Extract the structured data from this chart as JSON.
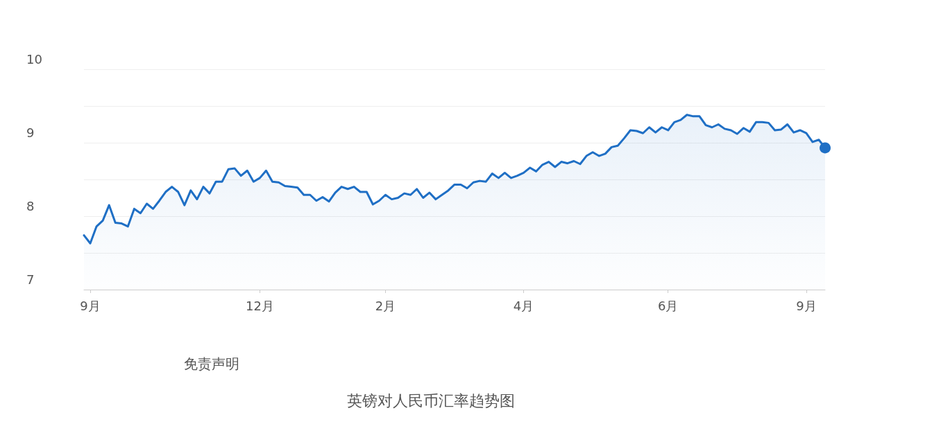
{
  "chart_data": {
    "type": "area",
    "title": "英镑对人民币汇率趋势图",
    "annotations": [
      "免责声明"
    ],
    "color": "#1f6fc5",
    "categories": [
      null,
      "9月",
      null,
      null,
      null,
      null,
      null,
      null,
      null,
      null,
      null,
      null,
      null,
      null,
      null,
      null,
      null,
      null,
      null,
      null,
      null,
      null,
      null,
      null,
      null,
      null,
      null,
      null,
      "12月",
      null,
      null,
      null,
      null,
      null,
      null,
      null,
      null,
      null,
      null,
      null,
      null,
      null,
      null,
      null,
      null,
      null,
      null,
      null,
      "2月",
      null,
      null,
      null,
      null,
      null,
      null,
      null,
      null,
      null,
      null,
      null,
      null,
      null,
      null,
      null,
      null,
      null,
      null,
      null,
      null,
      null,
      "4月",
      null,
      null,
      null,
      null,
      null,
      null,
      null,
      null,
      null,
      null,
      null,
      null,
      null,
      null,
      null,
      null,
      null,
      null,
      null,
      null,
      null,
      null,
      "6月",
      null,
      null,
      null,
      null,
      null,
      null,
      null,
      null,
      null,
      null,
      null,
      null,
      null,
      null,
      null,
      null,
      null,
      null,
      null,
      null,
      null,
      "9月",
      null,
      null,
      null
    ],
    "values": [
      7.74,
      7.63,
      7.86,
      7.94,
      8.15,
      7.91,
      7.9,
      7.86,
      8.1,
      8.04,
      8.17,
      8.1,
      8.21,
      8.33,
      8.4,
      8.33,
      8.15,
      8.35,
      8.23,
      8.4,
      8.31,
      8.47,
      8.47,
      8.64,
      8.65,
      8.55,
      8.62,
      8.47,
      8.52,
      8.62,
      8.47,
      8.46,
      8.41,
      8.4,
      8.39,
      8.29,
      8.29,
      8.21,
      8.26,
      8.2,
      8.32,
      8.4,
      8.37,
      8.4,
      8.33,
      8.33,
      8.16,
      8.21,
      8.29,
      8.23,
      8.25,
      8.31,
      8.29,
      8.37,
      8.25,
      8.32,
      8.23,
      8.29,
      8.35,
      8.43,
      8.43,
      8.38,
      8.46,
      8.48,
      8.47,
      8.58,
      8.52,
      8.59,
      8.52,
      8.55,
      8.59,
      8.66,
      8.61,
      8.7,
      8.74,
      8.67,
      8.74,
      8.72,
      8.75,
      8.71,
      8.82,
      8.87,
      8.82,
      8.85,
      8.94,
      8.96,
      9.06,
      9.17,
      9.16,
      9.13,
      9.21,
      9.14,
      9.21,
      9.17,
      9.28,
      9.31,
      9.38,
      9.36,
      9.36,
      9.24,
      9.21,
      9.25,
      9.19,
      9.17,
      9.12,
      9.2,
      9.15,
      9.28,
      9.28,
      9.27,
      9.17,
      9.18,
      9.25,
      9.14,
      9.17,
      9.13,
      9.01,
      9.04,
      8.93
    ],
    "ylim": [
      7,
      10
    ],
    "yticks": [
      7,
      8,
      9,
      10
    ],
    "grid": "y"
  }
}
